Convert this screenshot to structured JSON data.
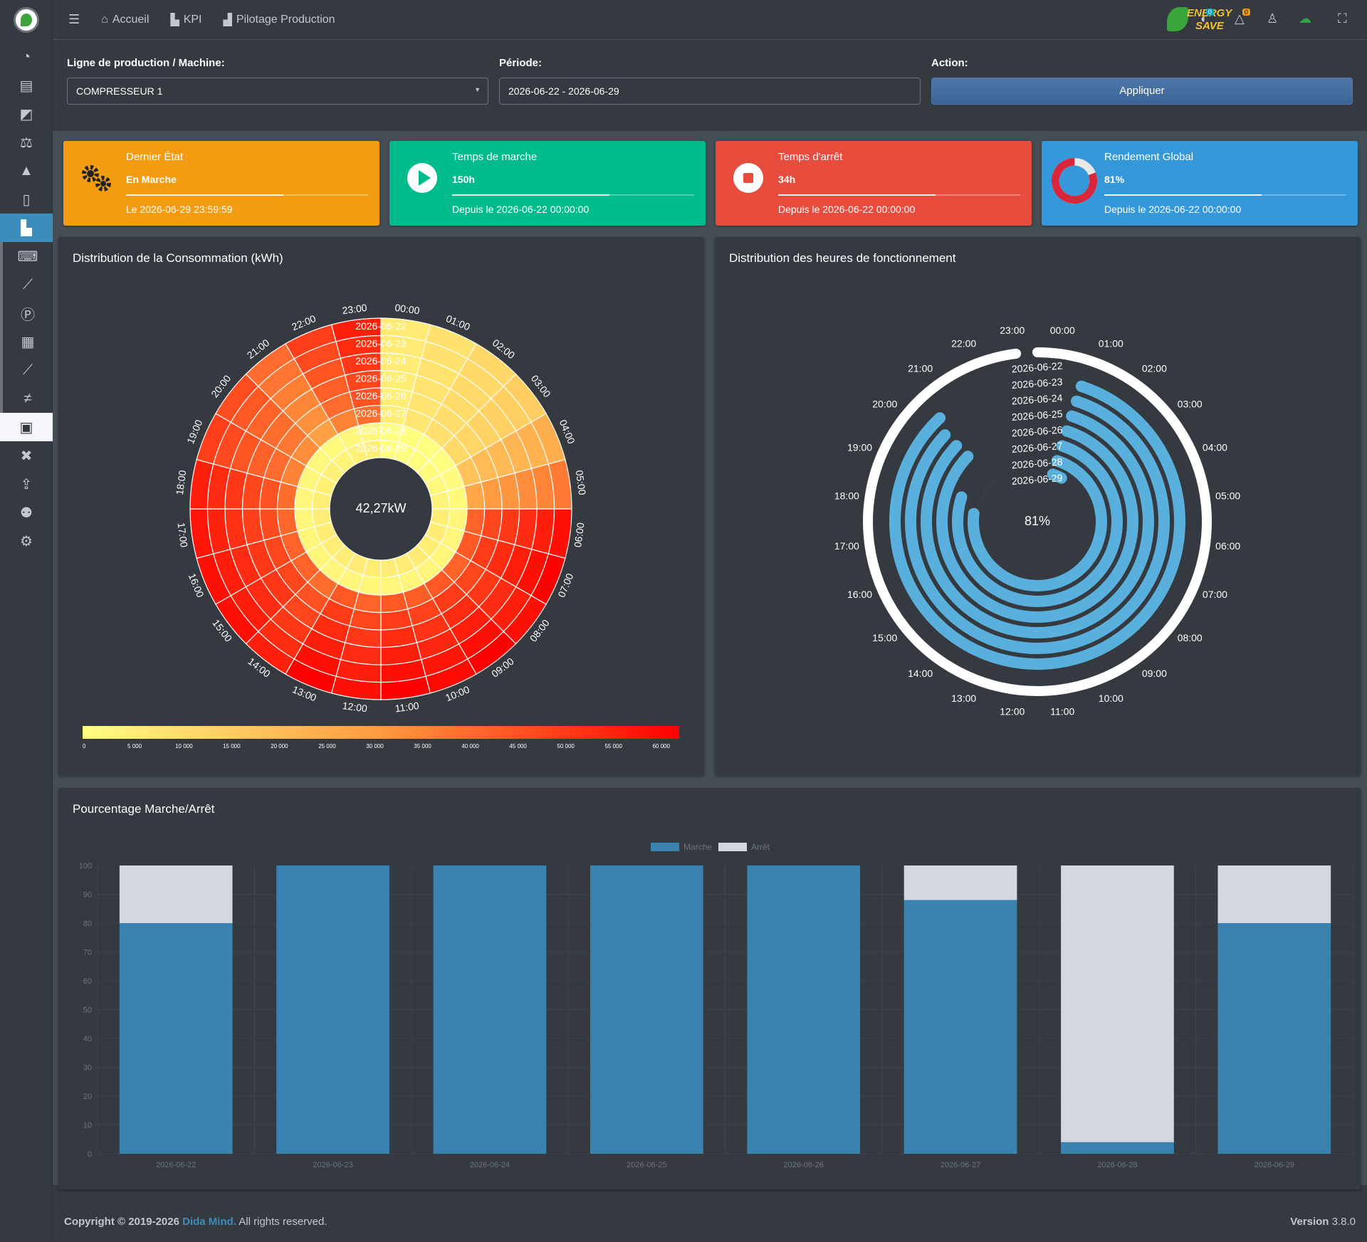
{
  "nav": {
    "menu_icon": "hamburger-icon",
    "links": [
      {
        "label": "Accueil",
        "icon": "home-icon"
      },
      {
        "label": "KPI",
        "icon": "factory-icon"
      },
      {
        "label": "Pilotage Production",
        "icon": "industry-icon"
      }
    ]
  },
  "brand": {
    "line1": "ENERGY",
    "line2": "SAVE"
  },
  "topbar_badges": {
    "messages": "0",
    "notifications": "0"
  },
  "filters": {
    "line_label": "Ligne de production / Machine:",
    "line_value": "COMPRESSEUR 1",
    "period_label": "Période:",
    "period_value": "2026-06-22 - 2026-06-29",
    "action_label": "Action:",
    "apply_label": "Appliquer"
  },
  "cards": [
    {
      "title": "Dernier État",
      "value": "En Marche",
      "progress": 0.65,
      "footer": "Le 2026-06-29 23:59:59",
      "color": "#f39c12",
      "icon": "gears-icon"
    },
    {
      "title": "Temps de marche",
      "value": "150h",
      "progress": 0.65,
      "footer": "Depuis le 2026-06-22 00:00:00",
      "color": "#00bc8c",
      "icon": "play-icon"
    },
    {
      "title": "Temps d'arrêt",
      "value": "34h",
      "progress": 0.65,
      "footer": "Depuis le 2026-06-22 00:00:00",
      "color": "#e74c3c",
      "icon": "stop-icon"
    },
    {
      "title": "Rendement Global",
      "value": "81%",
      "progress": 0.65,
      "footer": "Depuis le 2026-06-22 00:00:00",
      "color": "#3498db",
      "icon": "donut-icon"
    }
  ],
  "panels": {
    "consumption_title": "Distribution de la Consommation (kWh)",
    "hours_title": "Distribution des heures de fonctionnement",
    "percent_title": "Pourcentage Marche/Arrêt"
  },
  "consumption": {
    "center_label": "42,27kW",
    "hours": [
      "00:00",
      "01:00",
      "02:00",
      "03:00",
      "04:00",
      "05:00",
      "06:00",
      "07:00",
      "08:00",
      "09:00",
      "10:00",
      "11:00",
      "12:00",
      "13:00",
      "14:00",
      "15:00",
      "16:00",
      "17:00",
      "18:00",
      "19:00",
      "20:00",
      "21:00",
      "22:00",
      "23:00"
    ],
    "days": [
      "2026-06-22",
      "2026-06-23",
      "2026-06-24",
      "2026-06-25",
      "2026-06-26",
      "2026-06-27",
      "2026-06-28",
      "2026-06-29"
    ],
    "scale_ticks": [
      "0",
      "5 000",
      "10 000",
      "15 000",
      "20 000",
      "25 000",
      "30 000",
      "35 000",
      "40 000",
      "45 000",
      "50 000",
      "55 000",
      "60 000"
    ],
    "colors": {
      "low": "#ffff80",
      "high": "#ff0000"
    }
  },
  "running": {
    "center_label": "81%",
    "hours": [
      "00:00",
      "01:00",
      "02:00",
      "03:00",
      "04:00",
      "05:00",
      "06:00",
      "07:00",
      "08:00",
      "09:00",
      "10:00",
      "11:00",
      "12:00",
      "13:00",
      "14:00",
      "15:00",
      "16:00",
      "17:00",
      "18:00",
      "19:00",
      "20:00",
      "21:00",
      "22:00",
      "23:00"
    ],
    "days": [
      "2026-06-22",
      "2026-06-23",
      "2026-06-24",
      "2026-06-25",
      "2026-06-26",
      "2026-06-27",
      "2026-06-28",
      "2026-06-29"
    ],
    "ring_color": "#5ab0dc",
    "ring_fractions": [
      0.98,
      0.83,
      0.82,
      0.82,
      0.82,
      0.75,
      0.72,
      0.03
    ]
  },
  "chart_data": {
    "type": "bar",
    "categories": [
      "2026-06-22",
      "2026-06-23",
      "2026-06-24",
      "2026-06-25",
      "2026-06-26",
      "2026-06-27",
      "2026-06-28",
      "2026-06-29"
    ],
    "series": [
      {
        "name": "Marche",
        "values": [
          80,
          100,
          100,
          100,
          100,
          88,
          4,
          80
        ],
        "color": "#3a83b1"
      },
      {
        "name": "Arrêt",
        "values": [
          20,
          0,
          0,
          0,
          0,
          12,
          96,
          20
        ],
        "color": "#d3d7df"
      }
    ],
    "yticks": [
      "0",
      "10",
      "20",
      "30",
      "40",
      "50",
      "60",
      "70",
      "80",
      "90",
      "100"
    ],
    "ylim": [
      0,
      100
    ],
    "stacked": true,
    "grid": true,
    "legend": "top"
  },
  "footer": {
    "copyright_prefix": "Copyright © 2019-2026 ",
    "company": "Dida Mind.",
    "rights": " All rights reserved.",
    "version_label": "Version",
    "version": "3.8.0"
  }
}
